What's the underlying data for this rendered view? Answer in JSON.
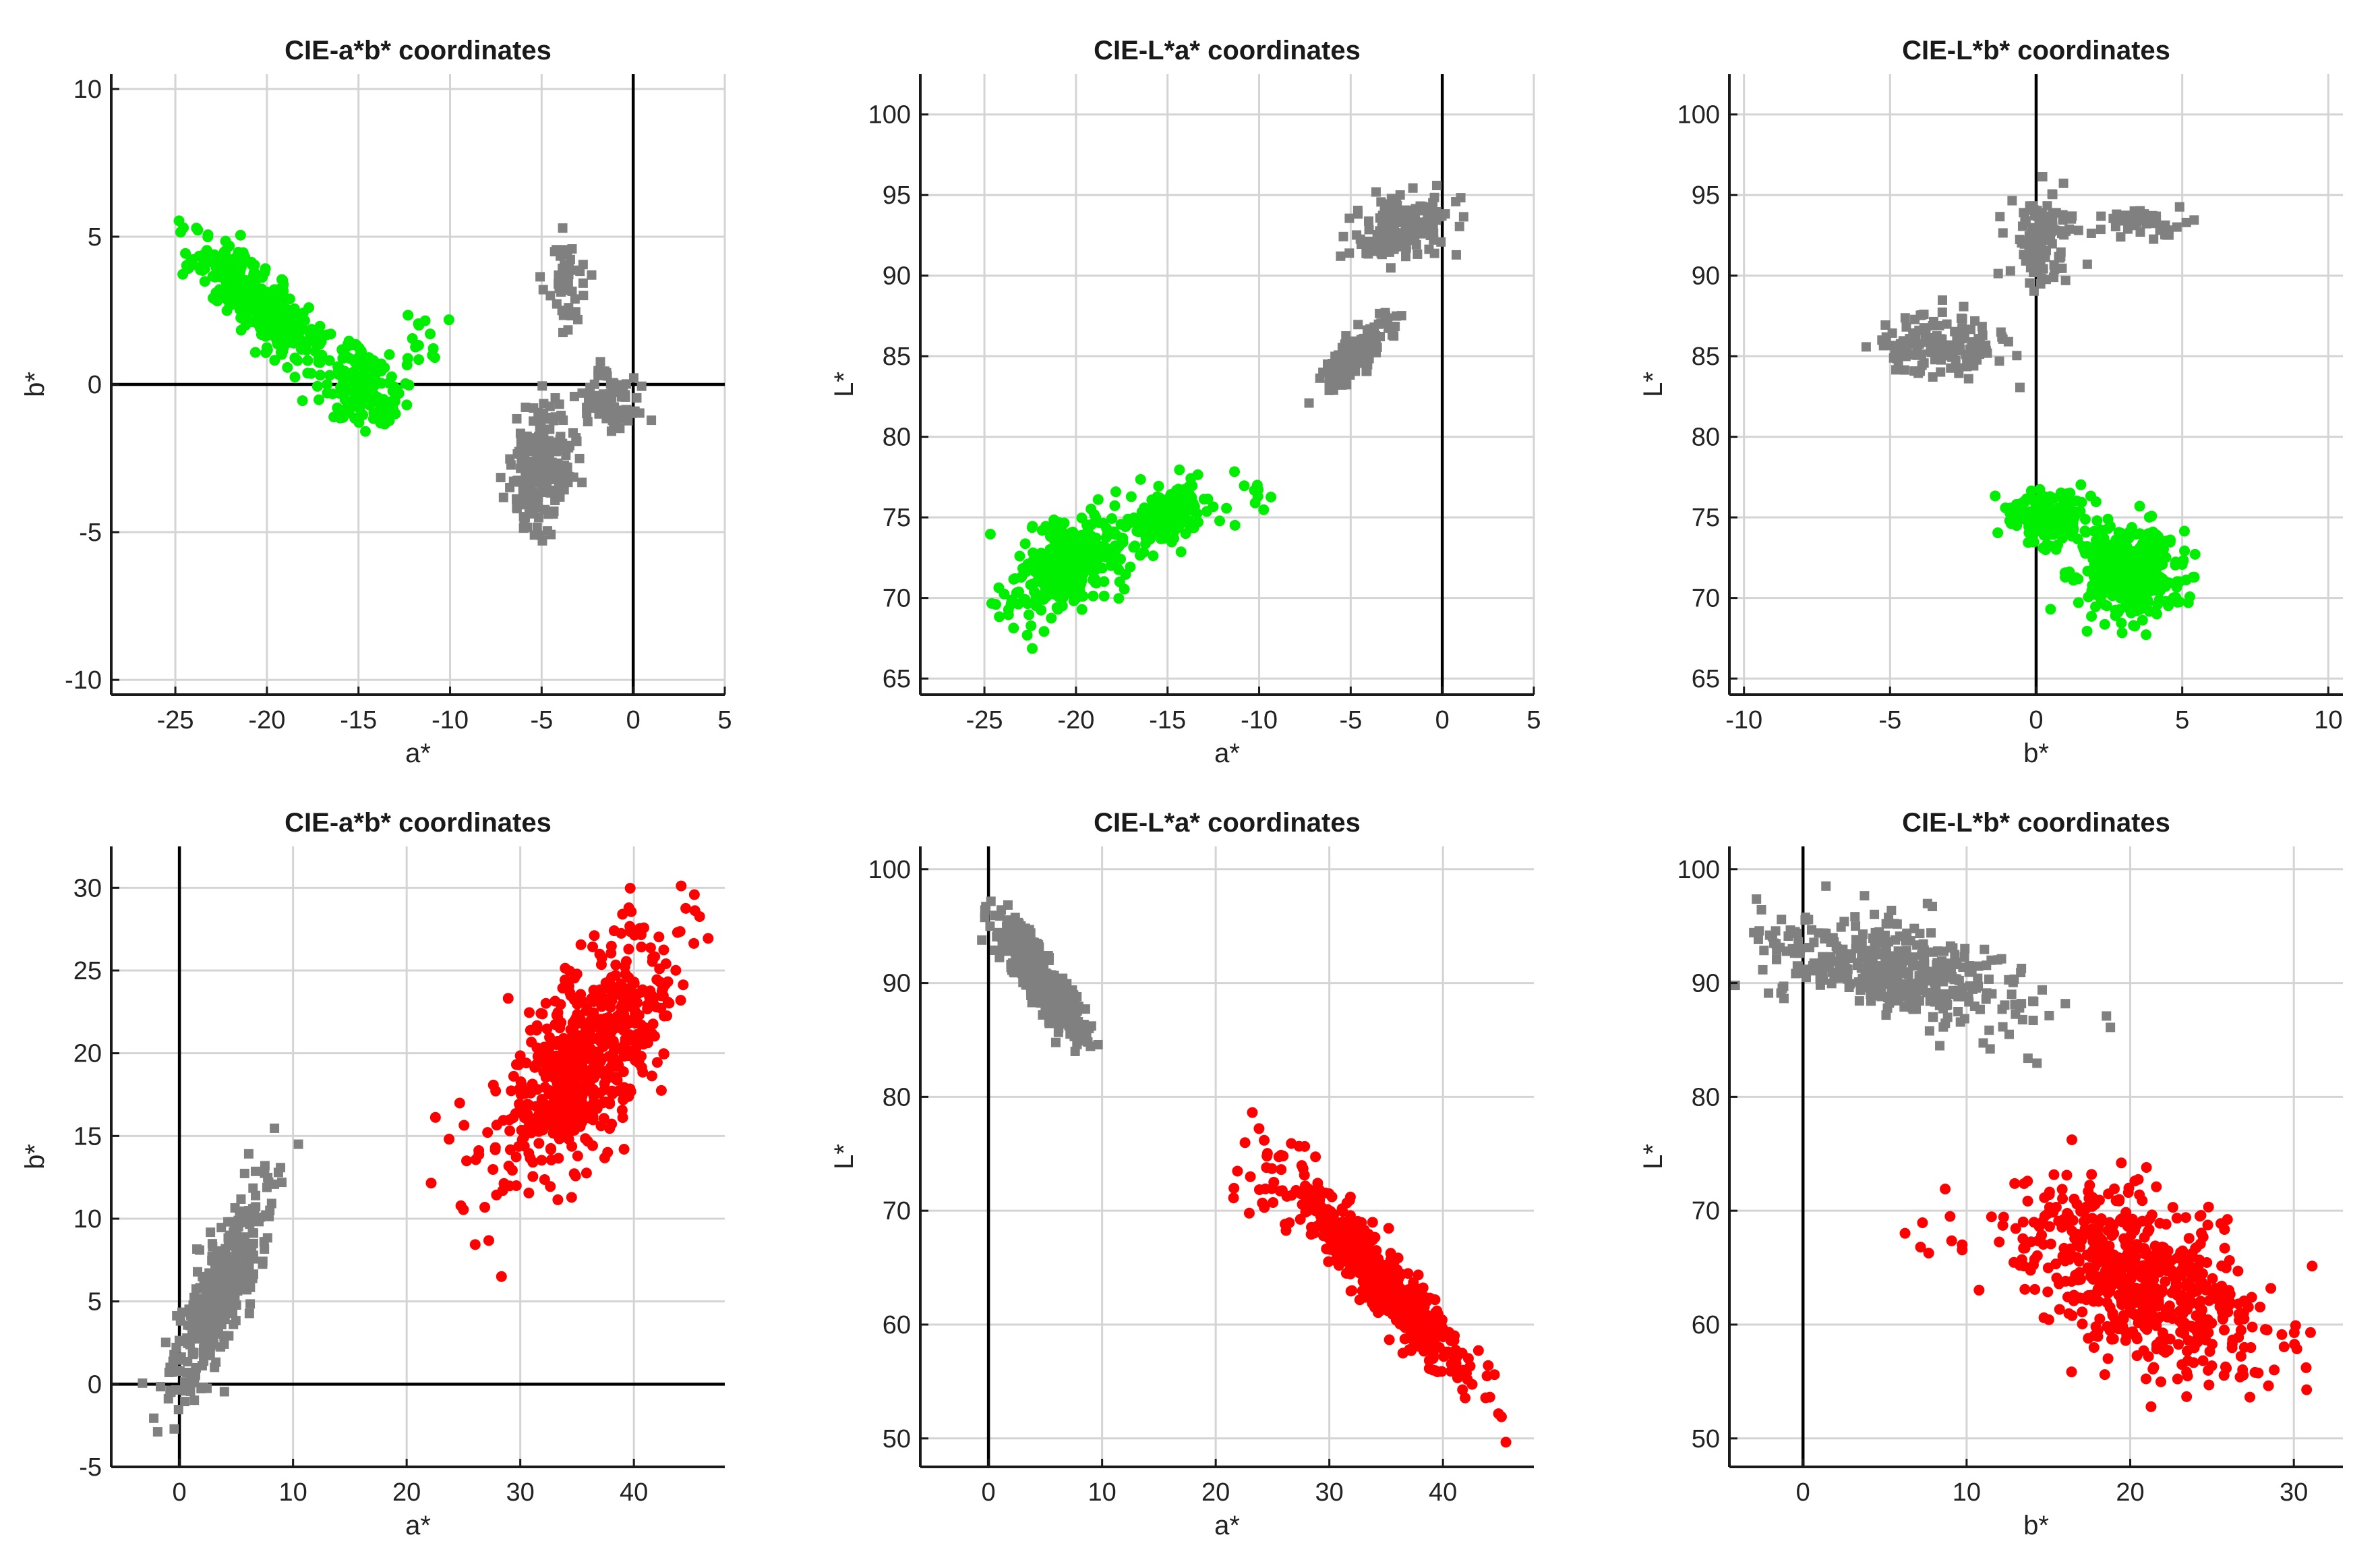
{
  "chart_data": [
    {
      "id": "p1",
      "type": "scatter",
      "title": "CIE-a*b* coordinates",
      "xlabel": "a*",
      "ylabel": "b*",
      "xlim": [
        -28.5,
        5
      ],
      "ylim": [
        -10.5,
        10.5
      ],
      "xticks": [
        -25,
        -20,
        -15,
        -10,
        -5,
        0,
        5
      ],
      "yticks": [
        -10,
        -5,
        0,
        5,
        10
      ],
      "zero_lines": {
        "x0": true,
        "y0": true
      },
      "series": [
        {
          "name": "green samples",
          "color": "#00ee00",
          "marker": "circle",
          "clusters": [
            {
              "cx": -20.5,
              "cy": 2.8,
              "sx": 1.7,
              "sy": 1.0,
              "rho": -0.8,
              "n": 380
            },
            {
              "cx": -14.8,
              "cy": 0.0,
              "sx": 1.0,
              "sy": 0.7,
              "rho": -0.3,
              "n": 170
            },
            {
              "cx": -11.5,
              "cy": 1.3,
              "sx": 1.2,
              "sy": 0.6,
              "rho": 0.0,
              "n": 14
            }
          ]
        },
        {
          "name": "gray samples",
          "color": "#808080",
          "marker": "square",
          "clusters": [
            {
              "cx": -5.0,
              "cy": -2.8,
              "sx": 0.9,
              "sy": 1.0,
              "rho": 0.2,
              "n": 200
            },
            {
              "cx": -3.6,
              "cy": 3.6,
              "sx": 0.5,
              "sy": 0.8,
              "rho": 0.0,
              "n": 50
            },
            {
              "cx": -1.3,
              "cy": -0.6,
              "sx": 0.8,
              "sy": 0.5,
              "rho": 0.0,
              "n": 80
            }
          ]
        }
      ]
    },
    {
      "id": "p2",
      "type": "scatter",
      "title": "CIE-L*a* coordinates",
      "xlabel": "a*",
      "ylabel": "L*",
      "xlim": [
        -28.5,
        5
      ],
      "ylim": [
        64,
        102.5
      ],
      "xticks": [
        -25,
        -20,
        -15,
        -10,
        -5,
        0,
        5
      ],
      "yticks": [
        65,
        70,
        75,
        80,
        85,
        90,
        95,
        100
      ],
      "zero_lines": {
        "x0": true,
        "y0": false
      },
      "series": [
        {
          "name": "green samples",
          "color": "#00ee00",
          "marker": "circle",
          "clusters": [
            {
              "cx": -20.5,
              "cy": 72.0,
              "sx": 1.5,
              "sy": 1.5,
              "rho": 0.4,
              "n": 380
            },
            {
              "cx": -15.0,
              "cy": 75.2,
              "sx": 1.0,
              "sy": 0.9,
              "rho": 0.4,
              "n": 170
            },
            {
              "cx": -11.0,
              "cy": 76.5,
              "sx": 1.0,
              "sy": 1.2,
              "rho": 0.5,
              "n": 14
            }
          ]
        },
        {
          "name": "gray samples",
          "color": "#808080",
          "marker": "square",
          "clusters": [
            {
              "cx": -4.8,
              "cy": 85.0,
              "sx": 1.0,
              "sy": 1.1,
              "rho": 0.85,
              "n": 140
            },
            {
              "cx": -2.3,
              "cy": 93.0,
              "sx": 1.2,
              "sy": 1.0,
              "rho": 0.3,
              "n": 170
            }
          ]
        }
      ]
    },
    {
      "id": "p3",
      "type": "scatter",
      "title": "CIE-L*b* coordinates",
      "xlabel": "b*",
      "ylabel": "L*",
      "xlim": [
        -10.5,
        10.5
      ],
      "ylim": [
        64,
        102.5
      ],
      "xticks": [
        -10,
        -5,
        0,
        5,
        10
      ],
      "yticks": [
        65,
        70,
        75,
        80,
        85,
        90,
        95,
        100
      ],
      "zero_lines": {
        "x0": true,
        "y0": false
      },
      "series": [
        {
          "name": "green samples",
          "color": "#00ee00",
          "marker": "circle",
          "clusters": [
            {
              "cx": 3.2,
              "cy": 71.5,
              "sx": 0.9,
              "sy": 1.4,
              "rho": 0.0,
              "n": 380
            },
            {
              "cx": 0.5,
              "cy": 74.8,
              "sx": 0.7,
              "sy": 0.9,
              "rho": 0.0,
              "n": 170
            }
          ]
        },
        {
          "name": "gray samples",
          "color": "#808080",
          "marker": "square",
          "clusters": [
            {
              "cx": -3.0,
              "cy": 85.5,
              "sx": 1.1,
              "sy": 1.0,
              "rho": 0.0,
              "n": 150
            },
            {
              "cx": 0.2,
              "cy": 92.5,
              "sx": 0.5,
              "sy": 1.4,
              "rho": 0.0,
              "n": 120
            },
            {
              "cx": 3.8,
              "cy": 93.3,
              "sx": 0.6,
              "sy": 0.5,
              "rho": 0.0,
              "n": 45
            }
          ]
        }
      ]
    },
    {
      "id": "p4",
      "type": "scatter",
      "title": "CIE-a*b* coordinates",
      "xlabel": "a*",
      "ylabel": "b*",
      "xlim": [
        -6,
        48
      ],
      "ylim": [
        -5,
        32.5
      ],
      "xticks": [
        0,
        10,
        20,
        30,
        40
      ],
      "yticks": [
        -5,
        0,
        5,
        10,
        15,
        20,
        25,
        30
      ],
      "zero_lines": {
        "x0": true,
        "y0": true
      },
      "series": [
        {
          "name": "red samples",
          "color": "#ff0000",
          "marker": "circle",
          "clusters": [
            {
              "cx": 36.0,
              "cy": 20.0,
              "sx": 3.8,
              "sy": 3.6,
              "rho": 0.65,
              "n": 620
            },
            {
              "cx": 25.0,
              "cy": 16.0,
              "sx": 3.0,
              "sy": 3.0,
              "rho": 0.3,
              "n": 12
            }
          ]
        },
        {
          "name": "gray samples",
          "color": "#808080",
          "marker": "square",
          "clusters": [
            {
              "cx": 3.5,
              "cy": 5.5,
              "sx": 2.1,
              "sy": 3.0,
              "rho": 0.8,
              "n": 400
            }
          ]
        }
      ]
    },
    {
      "id": "p5",
      "type": "scatter",
      "title": "CIE-L*a* coordinates",
      "xlabel": "a*",
      "ylabel": "L*",
      "xlim": [
        -6,
        48
      ],
      "ylim": [
        47.5,
        102
      ],
      "xticks": [
        0,
        10,
        20,
        30,
        40
      ],
      "yticks": [
        50,
        60,
        70,
        80,
        90,
        100
      ],
      "zero_lines": {
        "x0": true,
        "y0": false
      },
      "series": [
        {
          "name": "red samples",
          "color": "#ff0000",
          "marker": "circle",
          "clusters": [
            {
              "cx": 34.5,
              "cy": 64.0,
              "sx": 4.0,
              "sy": 4.5,
              "rho": -0.94,
              "n": 620
            },
            {
              "cx": 24.0,
              "cy": 71.0,
              "sx": 2.0,
              "sy": 1.5,
              "rho": -0.7,
              "n": 12
            }
          ]
        },
        {
          "name": "gray samples",
          "color": "#808080",
          "marker": "square",
          "clusters": [
            {
              "cx": 4.5,
              "cy": 90.5,
              "sx": 2.0,
              "sy": 2.8,
              "rho": -0.88,
              "n": 400
            }
          ]
        }
      ]
    },
    {
      "id": "p6",
      "type": "scatter",
      "title": "CIE-L*b* coordinates",
      "xlabel": "b*",
      "ylabel": "L*",
      "xlim": [
        -4.5,
        33
      ],
      "ylim": [
        47.5,
        102
      ],
      "xticks": [
        0,
        10,
        20,
        30
      ],
      "yticks": [
        50,
        60,
        70,
        80,
        90,
        100
      ],
      "zero_lines": {
        "x0": true,
        "y0": false
      },
      "series": [
        {
          "name": "red samples",
          "color": "#ff0000",
          "marker": "circle",
          "clusters": [
            {
              "cx": 20.5,
              "cy": 64.0,
              "sx": 3.6,
              "sy": 4.0,
              "rho": -0.5,
              "n": 620
            },
            {
              "cx": 8.0,
              "cy": 68.0,
              "sx": 1.5,
              "sy": 1.5,
              "rho": 0.0,
              "n": 8
            }
          ]
        },
        {
          "name": "gray samples",
          "color": "#808080",
          "marker": "square",
          "clusters": [
            {
              "cx": 6.0,
              "cy": 91.0,
              "sx": 3.8,
              "sy": 2.3,
              "rho": -0.5,
              "n": 400
            }
          ]
        }
      ]
    }
  ]
}
